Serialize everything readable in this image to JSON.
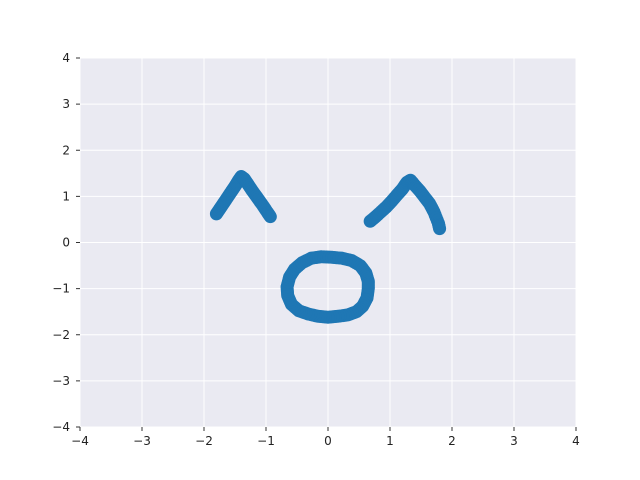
{
  "chart_data": {
    "type": "scatter",
    "title": "",
    "xlabel": "",
    "ylabel": "",
    "xlim": [
      -4,
      4
    ],
    "ylim": [
      -4,
      4
    ],
    "grid": true,
    "legend": "none",
    "x_ticks": [
      -4,
      -3,
      -2,
      -1,
      0,
      1,
      2,
      3,
      4
    ],
    "y_ticks": [
      -4,
      -3,
      -2,
      -1,
      0,
      1,
      2,
      3,
      4
    ],
    "x_tick_labels": [
      "−4",
      "−3",
      "−2",
      "−1",
      "0",
      "1",
      "2",
      "3",
      "4"
    ],
    "y_tick_labels": [
      "−4",
      "−3",
      "−2",
      "−1",
      "0",
      "1",
      "2",
      "3",
      "4"
    ],
    "colors": {
      "background": "#eaeaf2",
      "grid": "#ffffff",
      "marker": "#1f77b4"
    },
    "series": [
      {
        "values_xy": [
          [
            -1.8,
            0.62
          ],
          [
            -1.74,
            0.74
          ],
          [
            -1.68,
            0.86
          ],
          [
            -1.62,
            0.98
          ],
          [
            -1.56,
            1.1
          ],
          [
            -1.5,
            1.22
          ],
          [
            -1.45,
            1.33
          ],
          [
            -1.4,
            1.43
          ],
          [
            -1.35,
            1.38
          ],
          [
            -1.29,
            1.26
          ],
          [
            -1.22,
            1.12
          ],
          [
            -1.14,
            0.97
          ],
          [
            -1.06,
            0.82
          ],
          [
            -0.98,
            0.66
          ],
          [
            -0.93,
            0.56
          ]
        ]
      },
      {
        "values_xy": [
          [
            0.68,
            0.46
          ],
          [
            0.76,
            0.55
          ],
          [
            0.85,
            0.66
          ],
          [
            0.94,
            0.77
          ],
          [
            1.03,
            0.9
          ],
          [
            1.12,
            1.04
          ],
          [
            1.2,
            1.16
          ],
          [
            1.27,
            1.3
          ],
          [
            1.33,
            1.35
          ],
          [
            1.4,
            1.24
          ],
          [
            1.48,
            1.12
          ],
          [
            1.56,
            0.98
          ],
          [
            1.64,
            0.84
          ],
          [
            1.71,
            0.66
          ],
          [
            1.78,
            0.42
          ],
          [
            1.8,
            0.3
          ]
        ]
      },
      {
        "values_xy": [
          [
            0.65,
            -1.0
          ],
          [
            0.63,
            -1.2
          ],
          [
            0.56,
            -1.38
          ],
          [
            0.46,
            -1.5
          ],
          [
            0.32,
            -1.57
          ],
          [
            0.16,
            -1.6
          ],
          [
            0.0,
            -1.62
          ],
          [
            -0.16,
            -1.6
          ],
          [
            -0.32,
            -1.55
          ],
          [
            -0.47,
            -1.48
          ],
          [
            -0.59,
            -1.34
          ],
          [
            -0.65,
            -1.15
          ],
          [
            -0.66,
            -0.96
          ],
          [
            -0.62,
            -0.75
          ],
          [
            -0.54,
            -0.58
          ],
          [
            -0.42,
            -0.44
          ],
          [
            -0.27,
            -0.34
          ],
          [
            -0.11,
            -0.31
          ],
          [
            0.06,
            -0.32
          ],
          [
            0.22,
            -0.34
          ],
          [
            0.38,
            -0.39
          ],
          [
            0.52,
            -0.5
          ],
          [
            0.61,
            -0.66
          ],
          [
            0.65,
            -0.84
          ]
        ]
      }
    ]
  }
}
